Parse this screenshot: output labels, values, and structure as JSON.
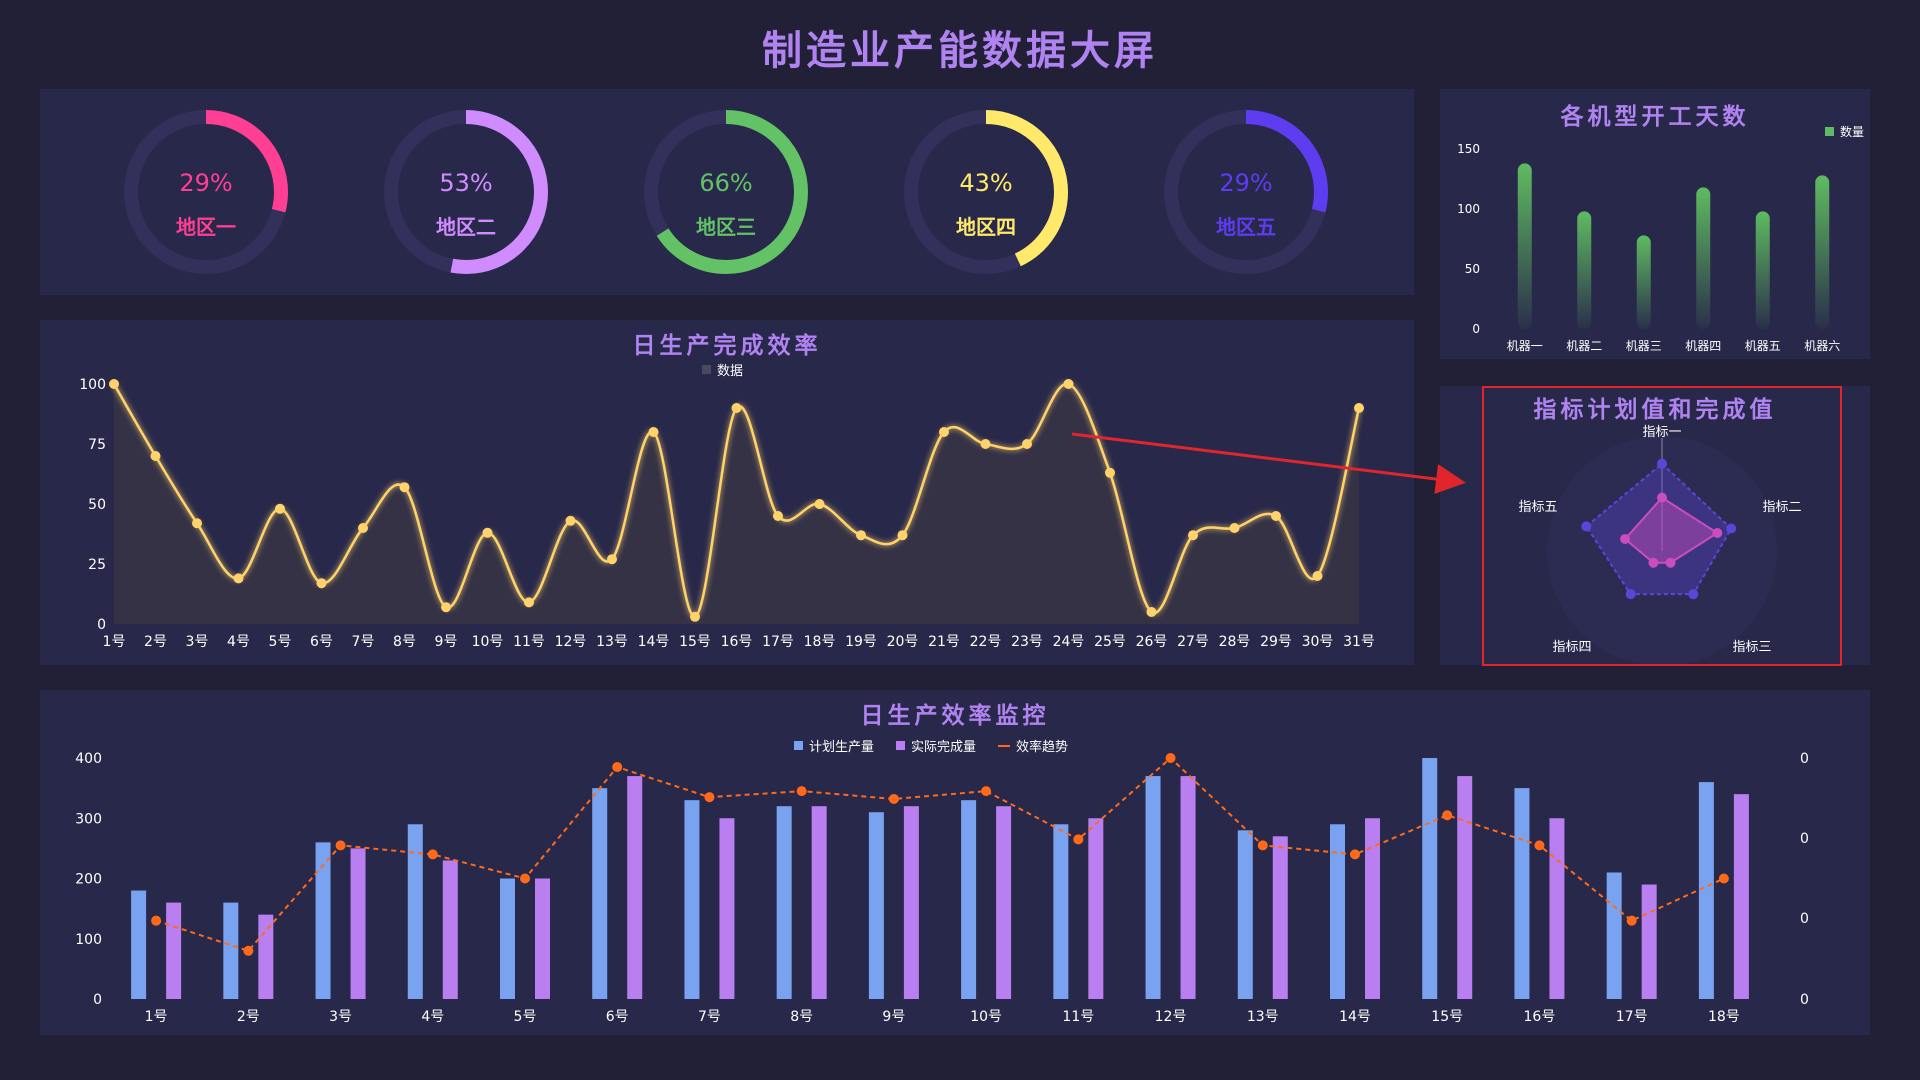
{
  "page_title": "制造业产能数据大屏",
  "gauges": [
    {
      "label": "地区一",
      "value": 29,
      "text": "29%",
      "color": "#ff3f93"
    },
    {
      "label": "地区二",
      "value": 53,
      "text": "53%",
      "color": "#d08cff"
    },
    {
      "label": "地区三",
      "value": 66,
      "text": "66%",
      "color": "#62c265"
    },
    {
      "label": "地区四",
      "value": 43,
      "text": "43%",
      "color": "#ffe96b"
    },
    {
      "label": "地区五",
      "value": 29,
      "text": "29%",
      "color": "#5e3cf0"
    }
  ],
  "chart_data": [
    {
      "id": "machines",
      "type": "bar",
      "title": "各机型开工天数",
      "legend": "数量",
      "categories": [
        "机器一",
        "机器二",
        "机器三",
        "机器四",
        "机器五",
        "机器六"
      ],
      "values": [
        138,
        98,
        78,
        118,
        98,
        128
      ],
      "ylim": [
        0,
        150
      ],
      "yticks": [
        0,
        50,
        100,
        150
      ],
      "color": "#5fbb61"
    },
    {
      "id": "daily",
      "type": "line",
      "title": "日生产完成效率",
      "legend": "数据",
      "categories": [
        "1号",
        "2号",
        "3号",
        "4号",
        "5号",
        "6号",
        "7号",
        "8号",
        "9号",
        "10号",
        "11号",
        "12号",
        "13号",
        "14号",
        "15号",
        "16号",
        "17号",
        "18号",
        "19号",
        "20号",
        "21号",
        "22号",
        "23号",
        "24号",
        "25号",
        "26号",
        "27号",
        "28号",
        "29号",
        "30号",
        "31号"
      ],
      "values": [
        100,
        70,
        42,
        19,
        48,
        17,
        40,
        57,
        7,
        38,
        9,
        43,
        27,
        80,
        3,
        90,
        45,
        50,
        37,
        37,
        80,
        75,
        75,
        100,
        63,
        5,
        37,
        40,
        45,
        20,
        90
      ],
      "ylim": [
        0,
        100
      ],
      "yticks": [
        0,
        25,
        50,
        75,
        100
      ],
      "color": "#ffd36b"
    },
    {
      "id": "radar",
      "type": "radar",
      "title": "指标计划值和完成值",
      "indicators": [
        "指标一",
        "指标二",
        "指标三",
        "指标四",
        "指标五"
      ],
      "series": [
        {
          "values": [
            0.9,
            0.75,
            0.55,
            0.55,
            0.82
          ],
          "color": "#5c46d8"
        },
        {
          "values": [
            0.55,
            0.6,
            0.15,
            0.15,
            0.4
          ],
          "color": "#c94dbd"
        }
      ]
    },
    {
      "id": "monitor",
      "type": "bar",
      "title": "日生产效率监控",
      "categories": [
        "1号",
        "2号",
        "3号",
        "4号",
        "5号",
        "6号",
        "7号",
        "8号",
        "9号",
        "10号",
        "11号",
        "12号",
        "13号",
        "14号",
        "15号",
        "16号",
        "17号",
        "18号"
      ],
      "series": [
        {
          "name": "计划生产量",
          "values": [
            180,
            160,
            260,
            290,
            200,
            350,
            330,
            320,
            310,
            330,
            290,
            370,
            280,
            290,
            400,
            350,
            210,
            360
          ],
          "color": "#79a3f1"
        },
        {
          "name": "实际完成量",
          "values": [
            160,
            140,
            250,
            230,
            200,
            370,
            300,
            320,
            320,
            320,
            300,
            370,
            270,
            300,
            370,
            300,
            190,
            340
          ],
          "color": "#b97ff0"
        }
      ],
      "line": {
        "name": "效率趋势",
        "values": [
          130,
          80,
          255,
          240,
          200,
          385,
          335,
          345,
          332,
          345,
          265,
          400,
          255,
          240,
          305,
          255,
          130,
          200
        ],
        "color": "#ff6a1a"
      },
      "ylim": [
        0,
        400
      ],
      "yticks": [
        0,
        100,
        200,
        300,
        400
      ],
      "yticks_right": [
        "0",
        "0",
        "0",
        "0"
      ]
    }
  ]
}
